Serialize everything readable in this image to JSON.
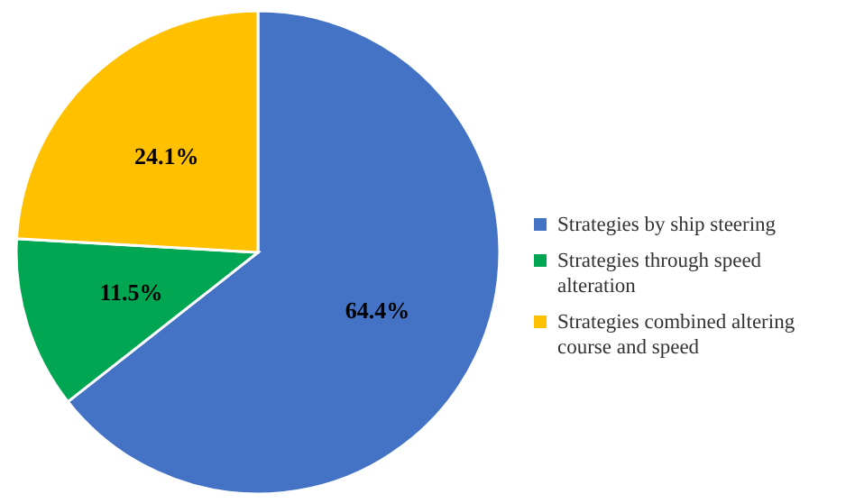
{
  "chart_data": {
    "type": "pie",
    "categories": [
      "Strategies by ship steering",
      "Strategies through speed alteration",
      "Strategies combined altering course and speed"
    ],
    "values": [
      64.4,
      11.5,
      24.1
    ],
    "colors": [
      "#4472c4",
      "#00a651",
      "#ffc000"
    ],
    "value_labels": [
      "64.4%",
      "11.5%",
      "24.1%"
    ],
    "legend": "right"
  }
}
